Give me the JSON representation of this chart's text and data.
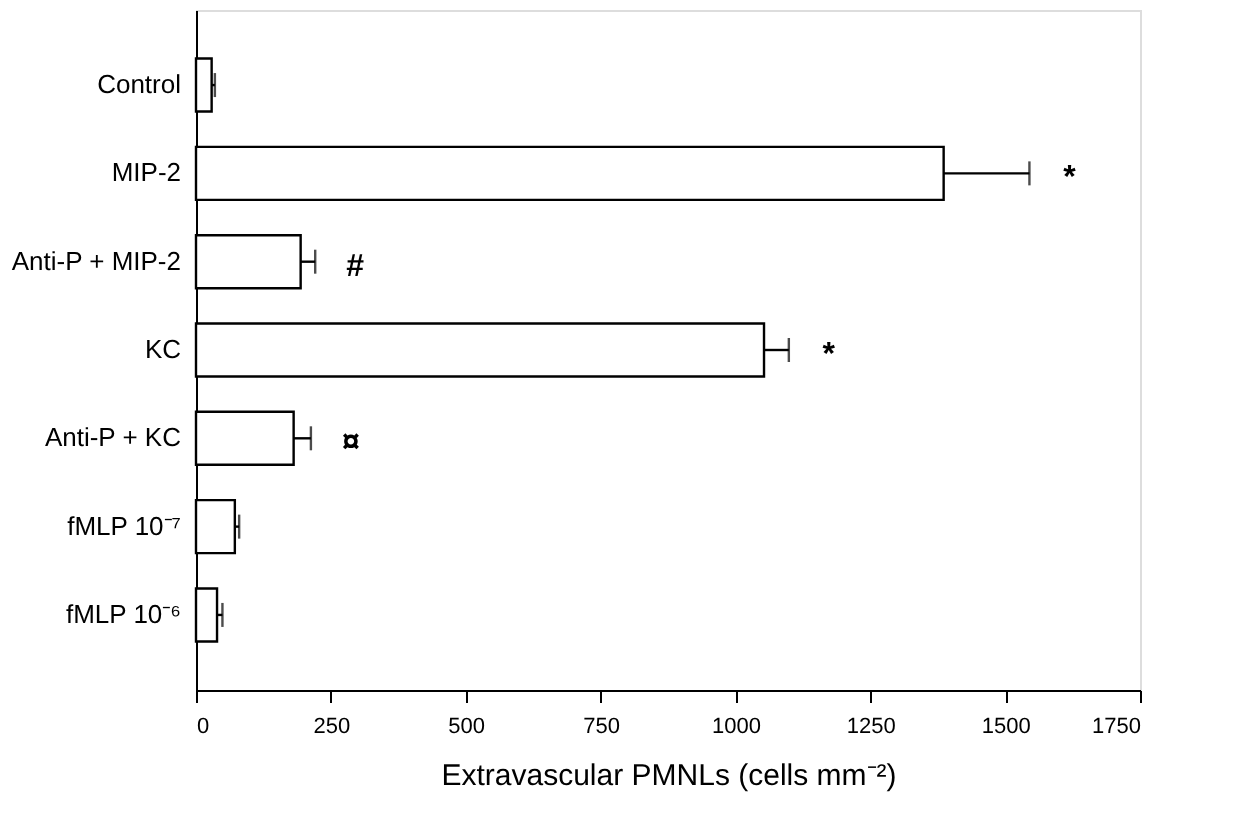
{
  "chart_data": {
    "type": "bar",
    "orientation": "horizontal",
    "xlabel": "Extravascular PMNLs (cells mm⁻²)",
    "categories": [
      "Control",
      "MIP-2",
      "Anti-P + MIP-2",
      "KC",
      "Anti-P + KC",
      "fMLP 10⁻⁷",
      "fMLP 10⁻⁶"
    ],
    "values": [
      29,
      1386,
      194,
      1053,
      181,
      72,
      39
    ],
    "errors": [
      [
        29,
        35
      ],
      [
        1386,
        1545
      ],
      [
        194,
        221
      ],
      [
        1053,
        1099
      ],
      [
        181,
        213
      ],
      [
        72,
        80
      ],
      [
        39,
        49
      ]
    ],
    "color": "#ffffff",
    "xlim": [
      0,
      1750
    ],
    "xticks": [
      0,
      250,
      500,
      750,
      1000,
      1250,
      1500,
      1750
    ],
    "grid": false,
    "annotations": [
      {
        "text": "*",
        "x": 1545,
        "y": "MIP-2"
      },
      {
        "text": "#",
        "x": 221,
        "y": "Anti-P + MIP-2"
      },
      {
        "text": "*",
        "x": 1099,
        "y": "KC"
      },
      {
        "text": "¤",
        "x": 213,
        "y": "Anti-P + KC"
      }
    ]
  }
}
